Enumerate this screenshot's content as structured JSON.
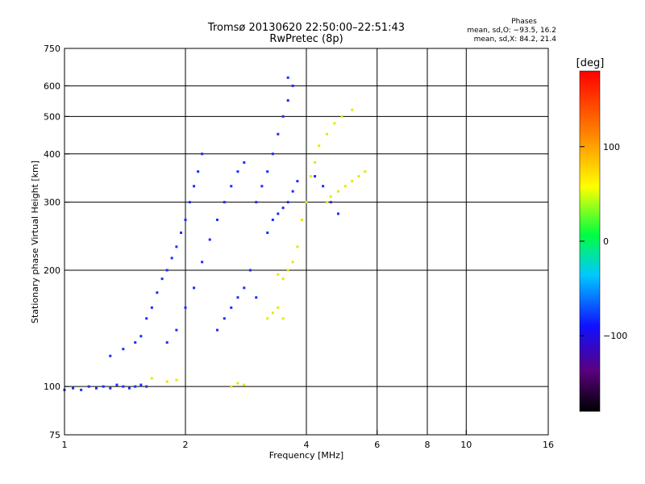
{
  "header": {
    "title_line1": "Tromsø 20130620 22:50:00–22:51:43",
    "title_line2": "RwPretec (8p)"
  },
  "stats": {
    "title": "Phases",
    "line_o": "mean, sd,O: −93.5, 16.2",
    "line_x": "mean, sd,X:  84.2, 21.4"
  },
  "colorbar": {
    "label": "[deg]",
    "ticks": [
      {
        "value": 100,
        "label": "100"
      },
      {
        "value": 0,
        "label": "0"
      },
      {
        "value": -100,
        "label": "−100"
      }
    ],
    "range": [
      -180,
      180
    ]
  },
  "chart_data": {
    "type": "scatter",
    "title": "Tromsø 20130620 22:50:00–22:51:43",
    "subtitle": "RwPretec (8p)",
    "xlabel": "Frequency [MHz]",
    "ylabel": "Stationary phase Virtual Height [km]",
    "xscale": "log",
    "yscale": "log",
    "xlim": [
      1,
      16
    ],
    "ylim": [
      75,
      750
    ],
    "xticks": [
      1,
      2,
      4,
      6,
      8,
      10,
      16
    ],
    "xtick_labels": [
      "1",
      "2",
      "4",
      "6",
      "8",
      "10",
      "16"
    ],
    "xgrid": [
      2,
      4,
      6,
      8,
      10
    ],
    "yticks": [
      75,
      100,
      200,
      300,
      400,
      500,
      600,
      750
    ],
    "ytick_labels": [
      "75",
      "100",
      "200",
      "300",
      "400",
      "500",
      "600",
      "750"
    ],
    "ygrid": [
      100,
      200,
      300,
      400,
      500,
      600
    ],
    "grid": true,
    "color_scale": "phase [deg], rainbow from −180 (black) to 180 (red)",
    "series": [
      {
        "name": "O",
        "color_phase": -100,
        "points": [
          [
            1.0,
            98
          ],
          [
            1.05,
            99
          ],
          [
            1.1,
            98
          ],
          [
            1.15,
            100
          ],
          [
            1.2,
            99
          ],
          [
            1.25,
            100
          ],
          [
            1.3,
            99
          ],
          [
            1.35,
            101
          ],
          [
            1.4,
            100
          ],
          [
            1.45,
            99
          ],
          [
            1.5,
            100
          ],
          [
            1.55,
            101
          ],
          [
            1.6,
            100
          ],
          [
            1.3,
            120
          ],
          [
            1.4,
            125
          ],
          [
            1.5,
            130
          ],
          [
            1.55,
            135
          ],
          [
            1.6,
            150
          ],
          [
            1.65,
            160
          ],
          [
            1.7,
            175
          ],
          [
            1.75,
            190
          ],
          [
            1.8,
            200
          ],
          [
            1.85,
            215
          ],
          [
            1.9,
            230
          ],
          [
            1.95,
            250
          ],
          [
            2.0,
            270
          ],
          [
            2.05,
            300
          ],
          [
            2.1,
            330
          ],
          [
            2.15,
            360
          ],
          [
            2.2,
            400
          ],
          [
            1.8,
            130
          ],
          [
            1.9,
            140
          ],
          [
            2.0,
            160
          ],
          [
            2.1,
            180
          ],
          [
            2.2,
            210
          ],
          [
            2.3,
            240
          ],
          [
            2.4,
            270
          ],
          [
            2.5,
            300
          ],
          [
            2.6,
            330
          ],
          [
            2.7,
            360
          ],
          [
            2.8,
            380
          ],
          [
            2.4,
            140
          ],
          [
            2.5,
            150
          ],
          [
            2.6,
            160
          ],
          [
            2.7,
            170
          ],
          [
            2.8,
            180
          ],
          [
            2.9,
            200
          ],
          [
            3.0,
            300
          ],
          [
            3.1,
            330
          ],
          [
            3.2,
            360
          ],
          [
            3.3,
            400
          ],
          [
            3.4,
            450
          ],
          [
            3.5,
            500
          ],
          [
            3.6,
            550
          ],
          [
            3.7,
            600
          ],
          [
            3.6,
            630
          ],
          [
            3.2,
            250
          ],
          [
            3.3,
            270
          ],
          [
            3.4,
            280
          ],
          [
            3.5,
            290
          ],
          [
            3.6,
            300
          ],
          [
            3.7,
            320
          ],
          [
            3.8,
            340
          ],
          [
            3.0,
            170
          ],
          [
            4.2,
            350
          ],
          [
            4.4,
            330
          ],
          [
            4.6,
            300
          ],
          [
            4.8,
            280
          ]
        ]
      },
      {
        "name": "X",
        "color_phase": 84,
        "points": [
          [
            1.65,
            105
          ],
          [
            1.8,
            103
          ],
          [
            1.9,
            104
          ],
          [
            2.6,
            100
          ],
          [
            2.7,
            102
          ],
          [
            2.8,
            101
          ],
          [
            3.2,
            150
          ],
          [
            3.3,
            155
          ],
          [
            3.4,
            160
          ],
          [
            3.5,
            150
          ],
          [
            3.5,
            190
          ],
          [
            3.6,
            200
          ],
          [
            3.4,
            195
          ],
          [
            3.7,
            210
          ],
          [
            3.8,
            230
          ],
          [
            3.9,
            270
          ],
          [
            4.0,
            300
          ],
          [
            4.1,
            350
          ],
          [
            4.2,
            380
          ],
          [
            4.5,
            300
          ],
          [
            4.6,
            310
          ],
          [
            4.8,
            320
          ],
          [
            5.0,
            330
          ],
          [
            5.2,
            340
          ],
          [
            5.4,
            350
          ],
          [
            5.6,
            360
          ],
          [
            4.3,
            420
          ],
          [
            4.5,
            450
          ],
          [
            4.7,
            480
          ],
          [
            4.9,
            500
          ],
          [
            5.2,
            520
          ]
        ]
      }
    ]
  }
}
